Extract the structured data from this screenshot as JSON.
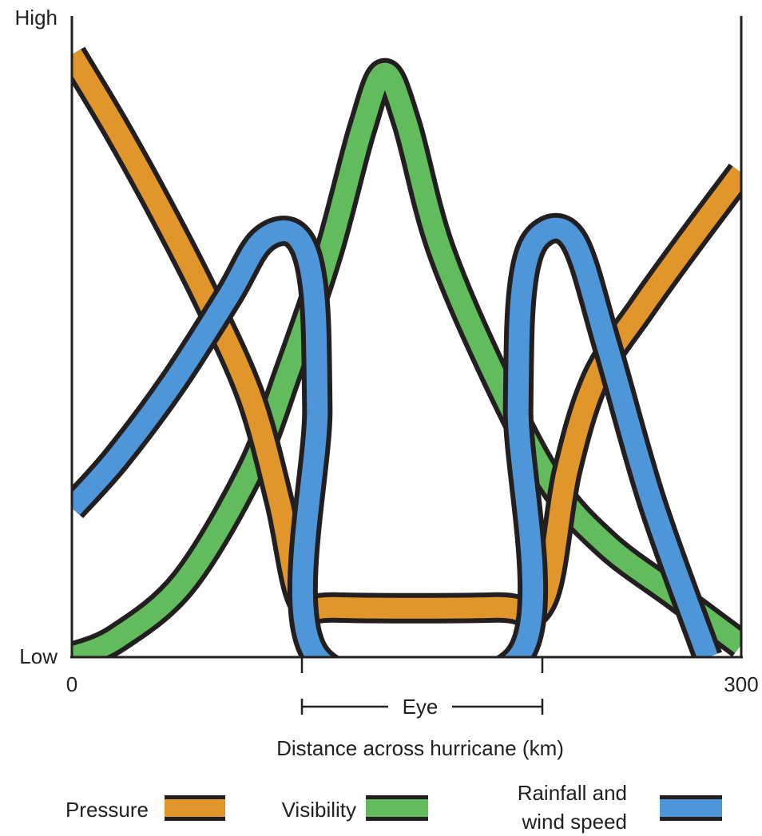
{
  "chart_data": {
    "type": "line",
    "title": "",
    "xlabel": "Distance across hurricane (km)",
    "ylabel": "",
    "xlim": [
      0,
      300
    ],
    "ylim": [
      0,
      100
    ],
    "x_ticks": [
      "0",
      "300"
    ],
    "y_ticks": [
      "Low",
      "High"
    ],
    "y_axis_is_qualitative": true,
    "grid": false,
    "annotation": {
      "label": "Eye",
      "x_range": [
        103,
        211
      ]
    },
    "legend_position": "bottom",
    "series": [
      {
        "name": "Pressure",
        "color": "#e0962a",
        "points": [
          [
            0,
            97
          ],
          [
            20,
            85
          ],
          [
            40,
            72
          ],
          [
            60,
            58
          ],
          [
            80,
            42
          ],
          [
            93,
            25
          ],
          [
            103,
            9
          ],
          [
            118,
            8
          ],
          [
            190,
            8
          ],
          [
            211,
            9
          ],
          [
            222,
            30
          ],
          [
            235,
            45
          ],
          [
            255,
            56
          ],
          [
            275,
            66
          ],
          [
            300,
            78
          ]
        ]
      },
      {
        "name": "Visibility",
        "color": "#62bb5c",
        "points": [
          [
            0,
            0
          ],
          [
            20,
            3
          ],
          [
            50,
            12
          ],
          [
            80,
            30
          ],
          [
            97,
            46
          ],
          [
            115,
            65
          ],
          [
            130,
            85
          ],
          [
            140,
            94
          ],
          [
            150,
            86
          ],
          [
            165,
            66
          ],
          [
            190,
            45
          ],
          [
            215,
            28
          ],
          [
            240,
            18
          ],
          [
            270,
            10
          ],
          [
            300,
            2
          ]
        ]
      },
      {
        "name": "Rainfall and wind speed",
        "color": "#4f96d8",
        "points": [
          [
            0,
            24
          ],
          [
            20,
            32
          ],
          [
            45,
            44
          ],
          [
            70,
            58
          ],
          [
            85,
            67
          ],
          [
            100,
            68
          ],
          [
            108,
            60
          ],
          [
            110,
            40
          ],
          [
            110,
            0
          ],
          [
            200,
            0
          ],
          [
            200,
            40
          ],
          [
            202,
            60
          ],
          [
            210,
            68
          ],
          [
            225,
            67
          ],
          [
            240,
            50
          ],
          [
            260,
            25
          ],
          [
            285,
            0
          ]
        ]
      }
    ],
    "legend": [
      {
        "label": "Pressure",
        "color": "#e0962a"
      },
      {
        "label": "Visibility",
        "color": "#62bb5c"
      },
      {
        "label_lines": [
          "Rainfall and",
          "wind speed"
        ],
        "color": "#4f96d8"
      }
    ]
  }
}
